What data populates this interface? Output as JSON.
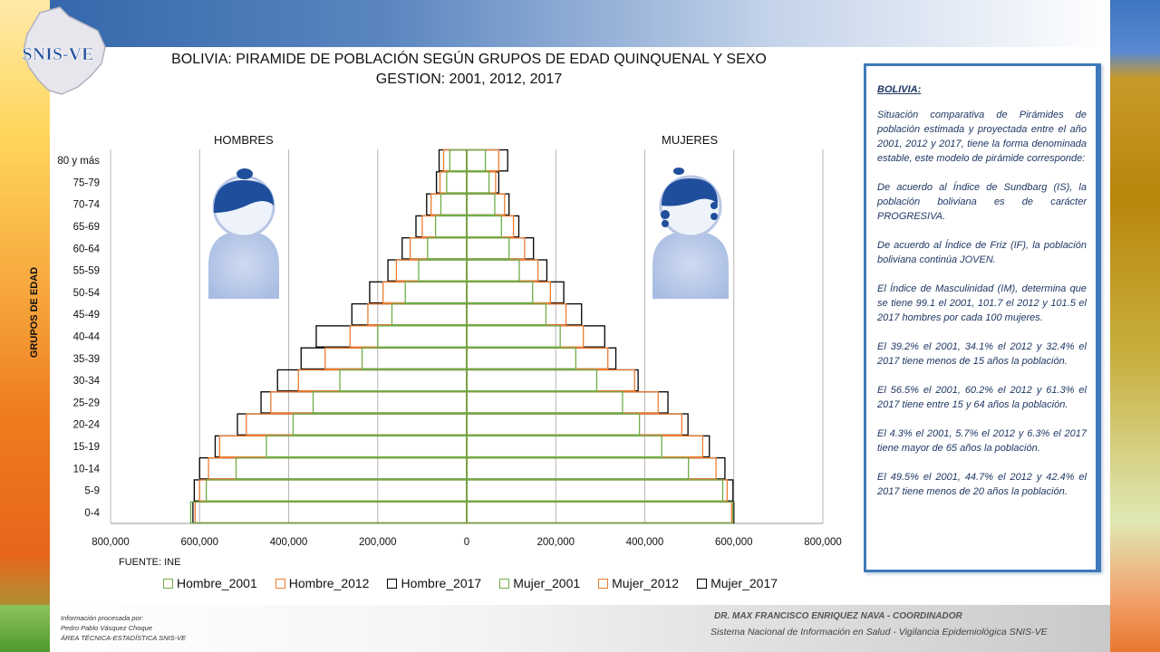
{
  "logo_text": "SNIS-VE",
  "title_line1": "BOLIVIA: PIRAMIDE DE POBLACIÓN SEGÚN GRUPOS DE EDAD QUINQUENAL Y SEXO",
  "title_line2": "GESTION:  2001, 2012, 2017",
  "male_label": "HOMBRES",
  "female_label": "MUJERES",
  "source": "FUENTE: INE",
  "colors": {
    "2001": "#70ad47",
    "2012": "#ed7d31",
    "2017": "#000000",
    "brand_blue": "#2f5597",
    "grid": "#b7b7b7"
  },
  "chart_data": {
    "type": "bar",
    "orientation": "horizontal-population-pyramid",
    "ylabel": "GRUPOS DE EDAD",
    "categories": [
      "0-4",
      "5-9",
      "10-14",
      "15-19",
      "20-24",
      "25-29",
      "30-34",
      "35-39",
      "40-44",
      "45-49",
      "50-54",
      "55-59",
      "60-64",
      "65-69",
      "70-74",
      "75-79",
      "80 y más"
    ],
    "xlim": [
      -800000,
      800000
    ],
    "xticks": [
      -800000,
      -600000,
      -400000,
      -200000,
      0,
      200000,
      400000,
      600000,
      800000
    ],
    "xtick_labels": [
      "800,000",
      "600,000",
      "400,000",
      "200,000",
      "0",
      "200,000",
      "400,000",
      "600,000",
      "800,000"
    ],
    "grid": "vertical",
    "legend_position": "bottom",
    "series": [
      {
        "name": "Hombre_2001",
        "side": "male",
        "values": [
          620000,
          585000,
          518000,
          450000,
          390000,
          345000,
          285000,
          235000,
          200000,
          168000,
          138000,
          108000,
          88000,
          70000,
          58000,
          45000,
          38000
        ]
      },
      {
        "name": "Hombre_2012",
        "side": "male",
        "values": [
          610000,
          600000,
          580000,
          555000,
          495000,
          440000,
          378000,
          318000,
          262000,
          222000,
          188000,
          158000,
          127000,
          100000,
          80000,
          60000,
          52000
        ]
      },
      {
        "name": "Hombre_2017",
        "side": "male",
        "values": [
          615000,
          612000,
          600000,
          565000,
          515000,
          462000,
          425000,
          372000,
          338000,
          258000,
          218000,
          177000,
          145000,
          114000,
          90000,
          68000,
          62000
        ]
      },
      {
        "name": "Mujer_2001",
        "side": "female",
        "values": [
          598000,
          575000,
          498000,
          438000,
          388000,
          350000,
          292000,
          245000,
          210000,
          178000,
          148000,
          118000,
          95000,
          78000,
          63000,
          50000,
          42000
        ]
      },
      {
        "name": "Mujer_2012",
        "side": "female",
        "values": [
          595000,
          585000,
          560000,
          530000,
          483000,
          430000,
          377000,
          317000,
          262000,
          223000,
          188000,
          160000,
          130000,
          105000,
          85000,
          65000,
          72000
        ]
      },
      {
        "name": "Mujer_2017",
        "side": "female",
        "values": [
          600000,
          598000,
          580000,
          545000,
          497000,
          452000,
          385000,
          335000,
          310000,
          258000,
          218000,
          180000,
          150000,
          117000,
          95000,
          72000,
          92000
        ]
      }
    ]
  },
  "info": {
    "title": "BOLIVIA:",
    "paragraphs": [
      "Situación comparativa de Pirámides de población estimada y proyectada entre el año 2001, 2012 y 2017, tiene la forma denominada estable, este modelo de pirámide corresponde:",
      "De acuerdo al Índice de Sundbarg (IS), la población boliviana es de carácter PROGRESIVA.",
      "De acuerdo al Índice de Friz (IF), la población boliviana continúa JOVEN.",
      "El Índice de Masculinidad (IM), determina que se tiene 99.1 el 2001, 101.7 el 2012 y 101.5 el 2017 hombres por cada 100 mujeres.",
      "El 39.2% el 2001, 34.1% el 2012 y 32.4% el 2017 tiene menos de 15 años la población.",
      "El 56.5% el 2001, 60.2% el 2012 y 61.3% el 2017 tiene entre 15 y 64 años la población.",
      "El 4.3% el 2001, 5.7% el 2012 y 6.3% el 2017 tiene mayor de 65 años la población.",
      "El 49.5% el 2001, 44.7% el 2012 y 42.4% el 2017 tiene menos de 20 años la población."
    ]
  },
  "footer": {
    "processed_line1": "Información procesada por:",
    "processed_line2": "Pedro Pablo Vásquez Choque",
    "processed_line3": "ÁREA TÉCNICA-ESTADÍSTICA  SNIS-VE",
    "coordinator": "DR. MAX FRANCISCO ENRIQUEZ NAVA - COORDINADOR",
    "system": "Sistema Nacional de Información en Salud - Vigilancia Epidemiológica SNIS-VE"
  }
}
